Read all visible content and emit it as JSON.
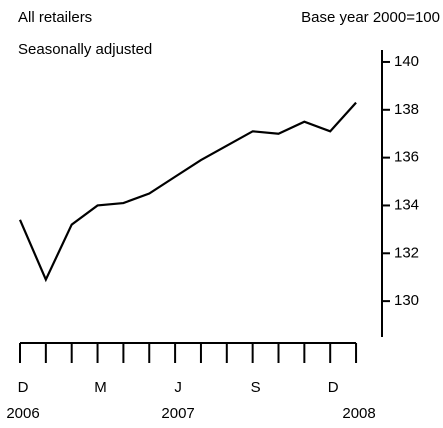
{
  "chart_data": {
    "type": "line",
    "title": "All retailers",
    "subtitle": "Seasonally adjusted",
    "y_label": "Base year 2000=100",
    "categories": [
      "D",
      null,
      null,
      "M",
      null,
      null,
      "J",
      null,
      null,
      "S",
      null,
      null,
      "D",
      null
    ],
    "year_labels": [
      "2006",
      null,
      null,
      null,
      null,
      null,
      "2007",
      null,
      null,
      null,
      null,
      null,
      null,
      "2008"
    ],
    "series": [
      {
        "name": "All retailers",
        "color": "#000000",
        "values": [
          133.4,
          130.9,
          133.2,
          134.0,
          134.1,
          134.5,
          135.2,
          135.9,
          136.5,
          137.1,
          137.0,
          137.5,
          137.1,
          138.3
        ]
      }
    ],
    "ylim": [
      128.5,
      140.5
    ],
    "yticks": [
      130,
      132,
      134,
      136,
      138,
      140
    ],
    "y_axis_side": "right"
  }
}
